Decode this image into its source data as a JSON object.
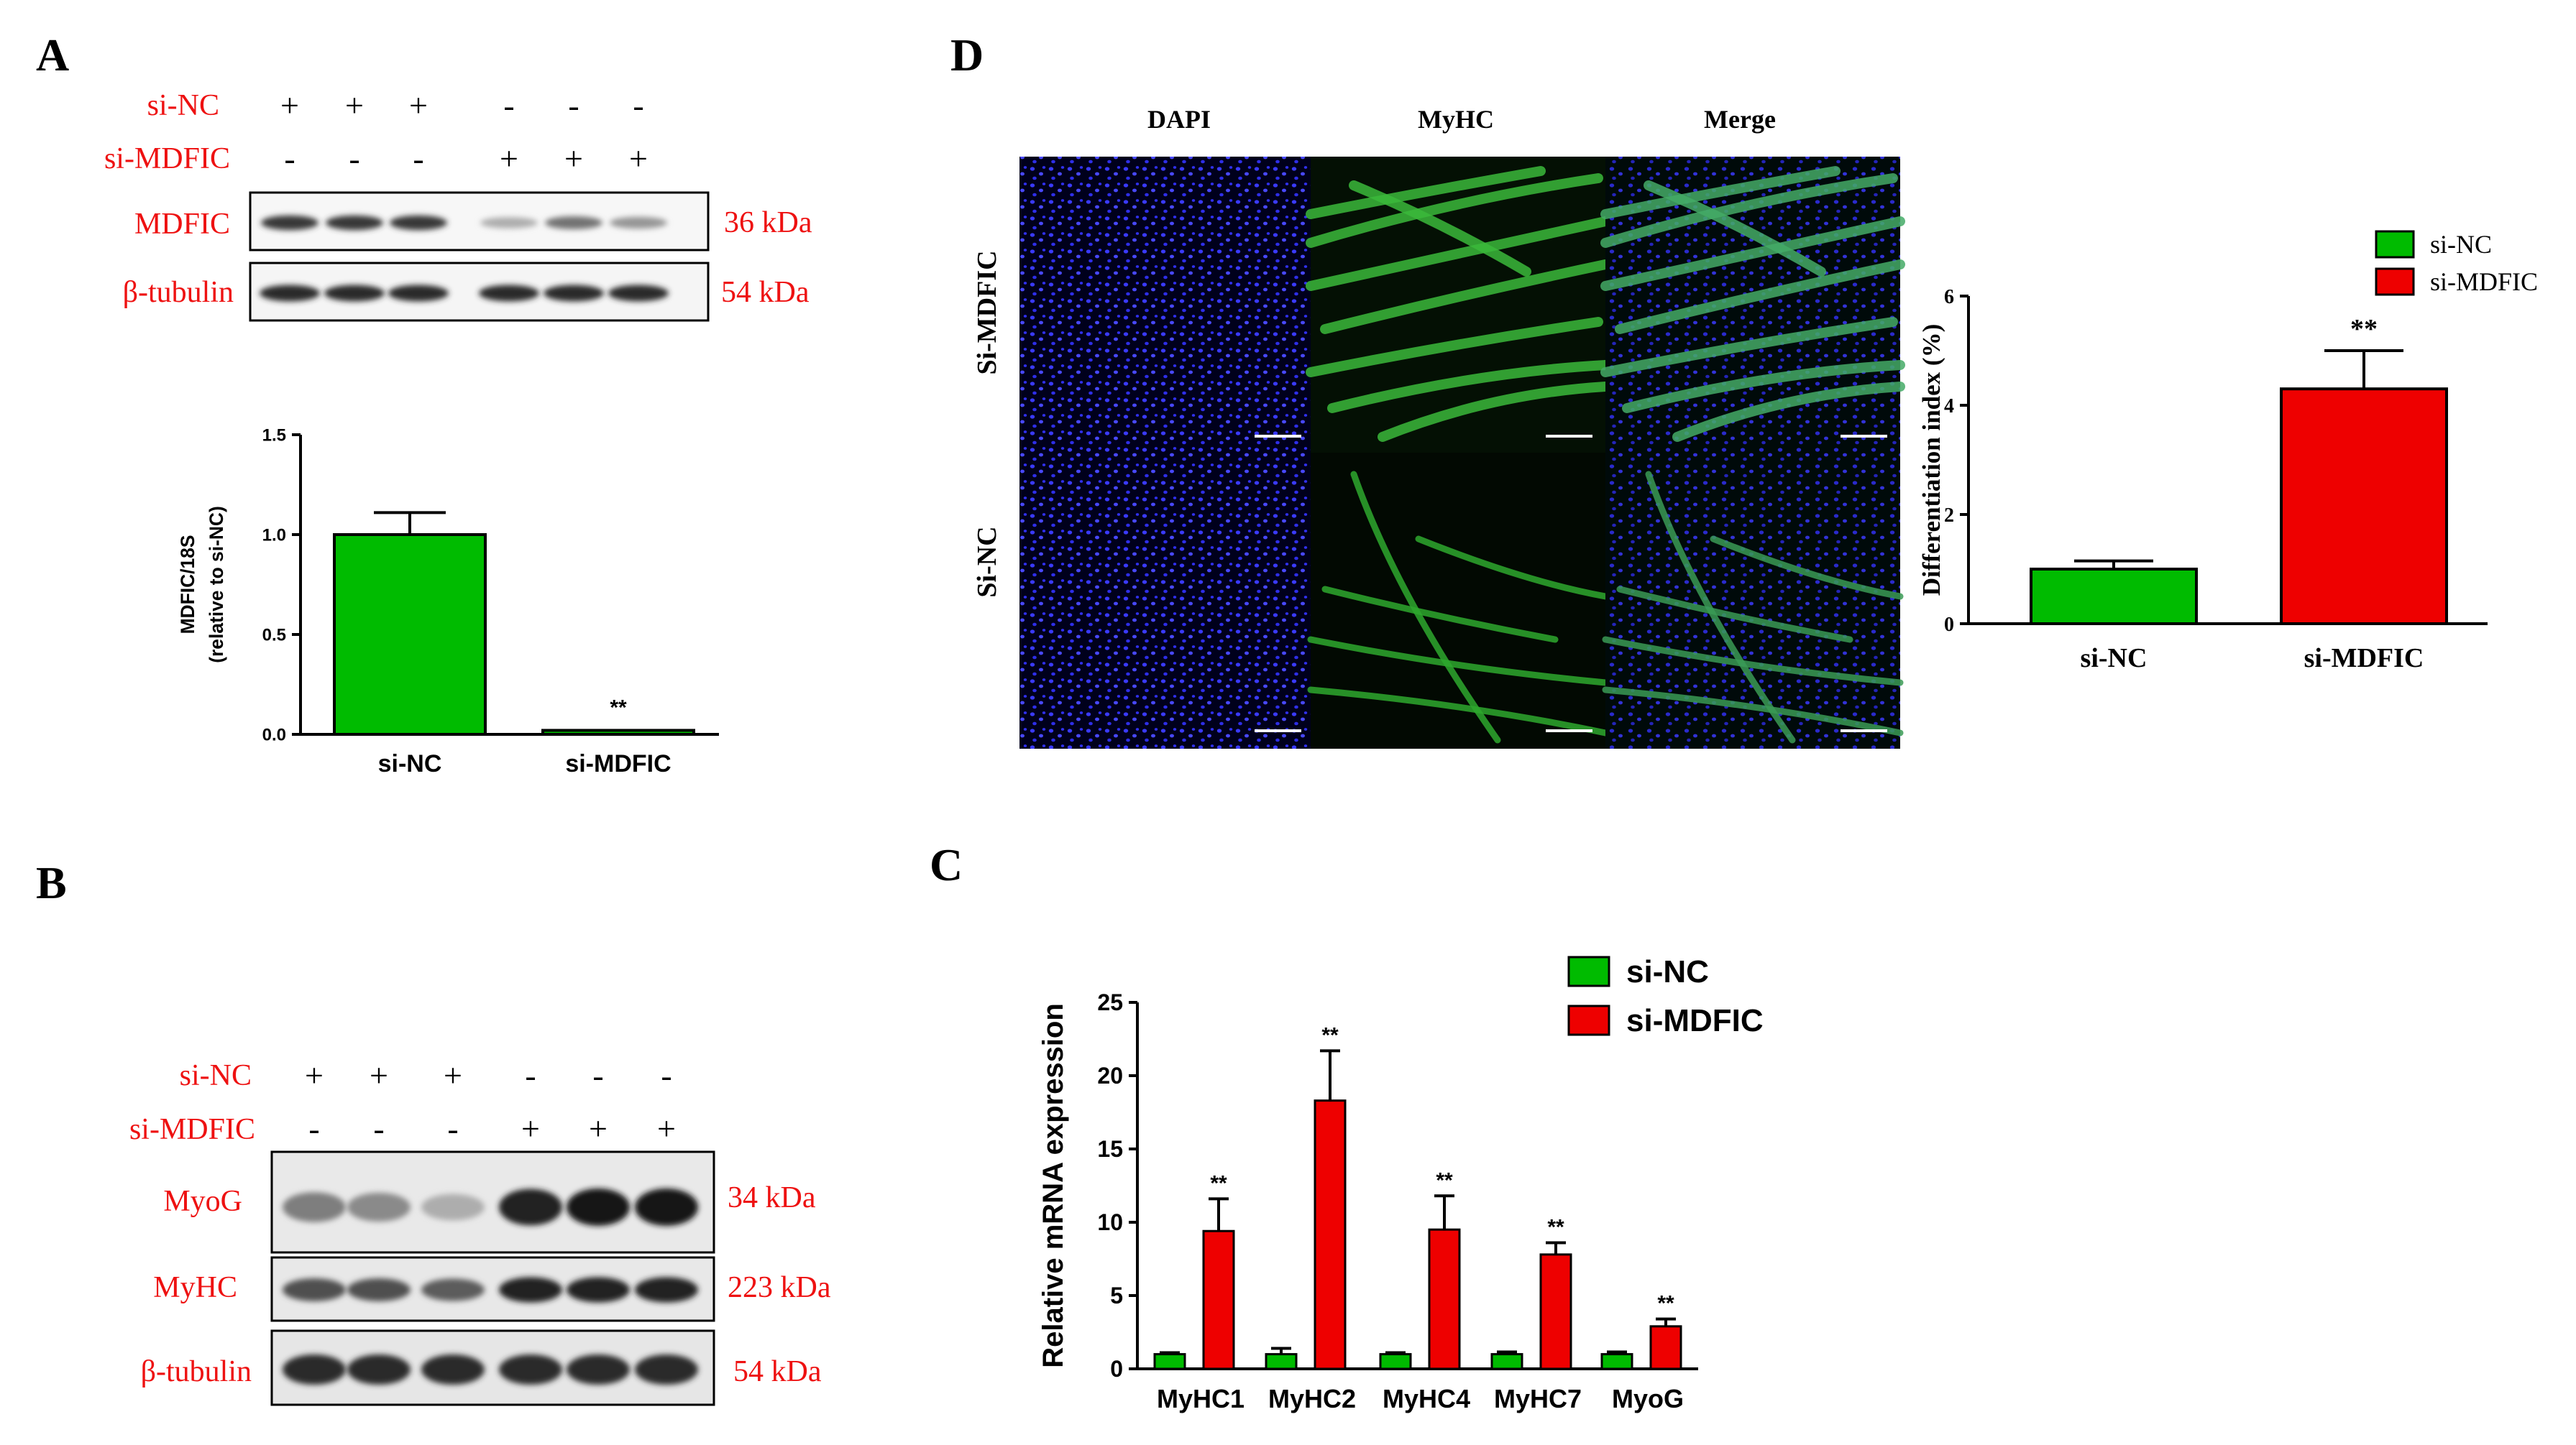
{
  "panels": {
    "A": {
      "letter": "A",
      "blot": {
        "conditions": [
          {
            "label": "si-NC",
            "marks": [
              "+",
              "+",
              "+",
              "-",
              "-",
              "-"
            ]
          },
          {
            "label": "si-MDFIC",
            "marks": [
              "-",
              "-",
              "-",
              "+",
              "+",
              "+"
            ]
          }
        ],
        "bands": [
          {
            "label": "MDFIC",
            "size": "36 kDa",
            "intensity": [
              0.85,
              0.85,
              0.85,
              0.35,
              0.6,
              0.45
            ]
          },
          {
            "label": "β-tubulin",
            "size": "54 kDa",
            "intensity": [
              0.9,
              0.9,
              0.9,
              0.9,
              0.9,
              0.9
            ]
          }
        ]
      }
    },
    "B": {
      "letter": "B",
      "blot": {
        "conditions": [
          {
            "label": "si-NC",
            "marks": [
              "+",
              "+",
              "+",
              "-",
              "-",
              "-"
            ]
          },
          {
            "label": "si-MDFIC",
            "marks": [
              "-",
              "-",
              "-",
              "+",
              "+",
              "+"
            ]
          }
        ],
        "bands": [
          {
            "label": "MyoG",
            "size": "34 kDa",
            "intensity": [
              0.55,
              0.5,
              0.35,
              0.95,
              1.0,
              1.0
            ]
          },
          {
            "label": "MyHC",
            "size": "223 kDa",
            "intensity": [
              0.75,
              0.75,
              0.7,
              0.95,
              0.95,
              0.95
            ]
          },
          {
            "label": "β-tubulin",
            "size": "54 kDa",
            "intensity": [
              0.9,
              0.9,
              0.9,
              0.9,
              0.9,
              0.9
            ]
          }
        ]
      }
    },
    "C": {
      "letter": "C"
    },
    "D": {
      "letter": "D",
      "columns": [
        "DAPI",
        "MyHC",
        "Merge"
      ],
      "rows": [
        "Si-MDFIC",
        "Si-NC"
      ]
    }
  },
  "chart_data": [
    {
      "id": "A-bar",
      "type": "bar",
      "categories": [
        "si-NC",
        "si-MDFIC"
      ],
      "values": [
        1.0,
        0.02
      ],
      "errors": [
        0.11,
        0.0
      ],
      "significance": [
        "",
        "**"
      ],
      "colors": [
        "#00bb00",
        "#00bb00"
      ],
      "ylabel": "MDFIC/18S",
      "ylabel2": "(relative to si-NC)",
      "ylim": [
        0,
        1.5
      ],
      "yticks": [
        "0.0",
        "0.5",
        "1.0",
        "1.5"
      ]
    },
    {
      "id": "D-bar",
      "type": "bar",
      "categories": [
        "si-NC",
        "si-MDFIC"
      ],
      "values": [
        1.0,
        4.3
      ],
      "errors": [
        0.15,
        0.7
      ],
      "significance": [
        "",
        "**"
      ],
      "colors": [
        "#00bb00",
        "#ee0000"
      ],
      "ylabel": "Differentiation index (%)",
      "ylim": [
        0,
        6
      ],
      "yticks": [
        "0",
        "2",
        "4",
        "6"
      ],
      "legend": [
        {
          "name": "si-NC",
          "color": "#00bb00"
        },
        {
          "name": "si-MDFIC",
          "color": "#ee0000"
        }
      ]
    },
    {
      "id": "C-bar",
      "type": "bar",
      "categories": [
        "MyHC1",
        "MyHC2",
        "MyHC4",
        "MyHC7",
        "MyoG"
      ],
      "ylabel": "Relative mRNA expression",
      "ylim": [
        0,
        25
      ],
      "yticks": [
        "0",
        "5",
        "10",
        "15",
        "20",
        "25"
      ],
      "series": [
        {
          "name": "si-NC",
          "color": "#00bb00",
          "values": [
            1.0,
            1.0,
            1.0,
            1.0,
            1.0
          ],
          "errors": [
            0.1,
            0.4,
            0.1,
            0.15,
            0.15
          ]
        },
        {
          "name": "si-MDFIC",
          "color": "#ee0000",
          "values": [
            9.4,
            18.3,
            9.5,
            7.8,
            2.9
          ],
          "errors": [
            2.2,
            3.4,
            2.3,
            0.8,
            0.5
          ]
        }
      ],
      "significance": [
        "**",
        "**",
        "**",
        "**",
        "**"
      ]
    }
  ]
}
